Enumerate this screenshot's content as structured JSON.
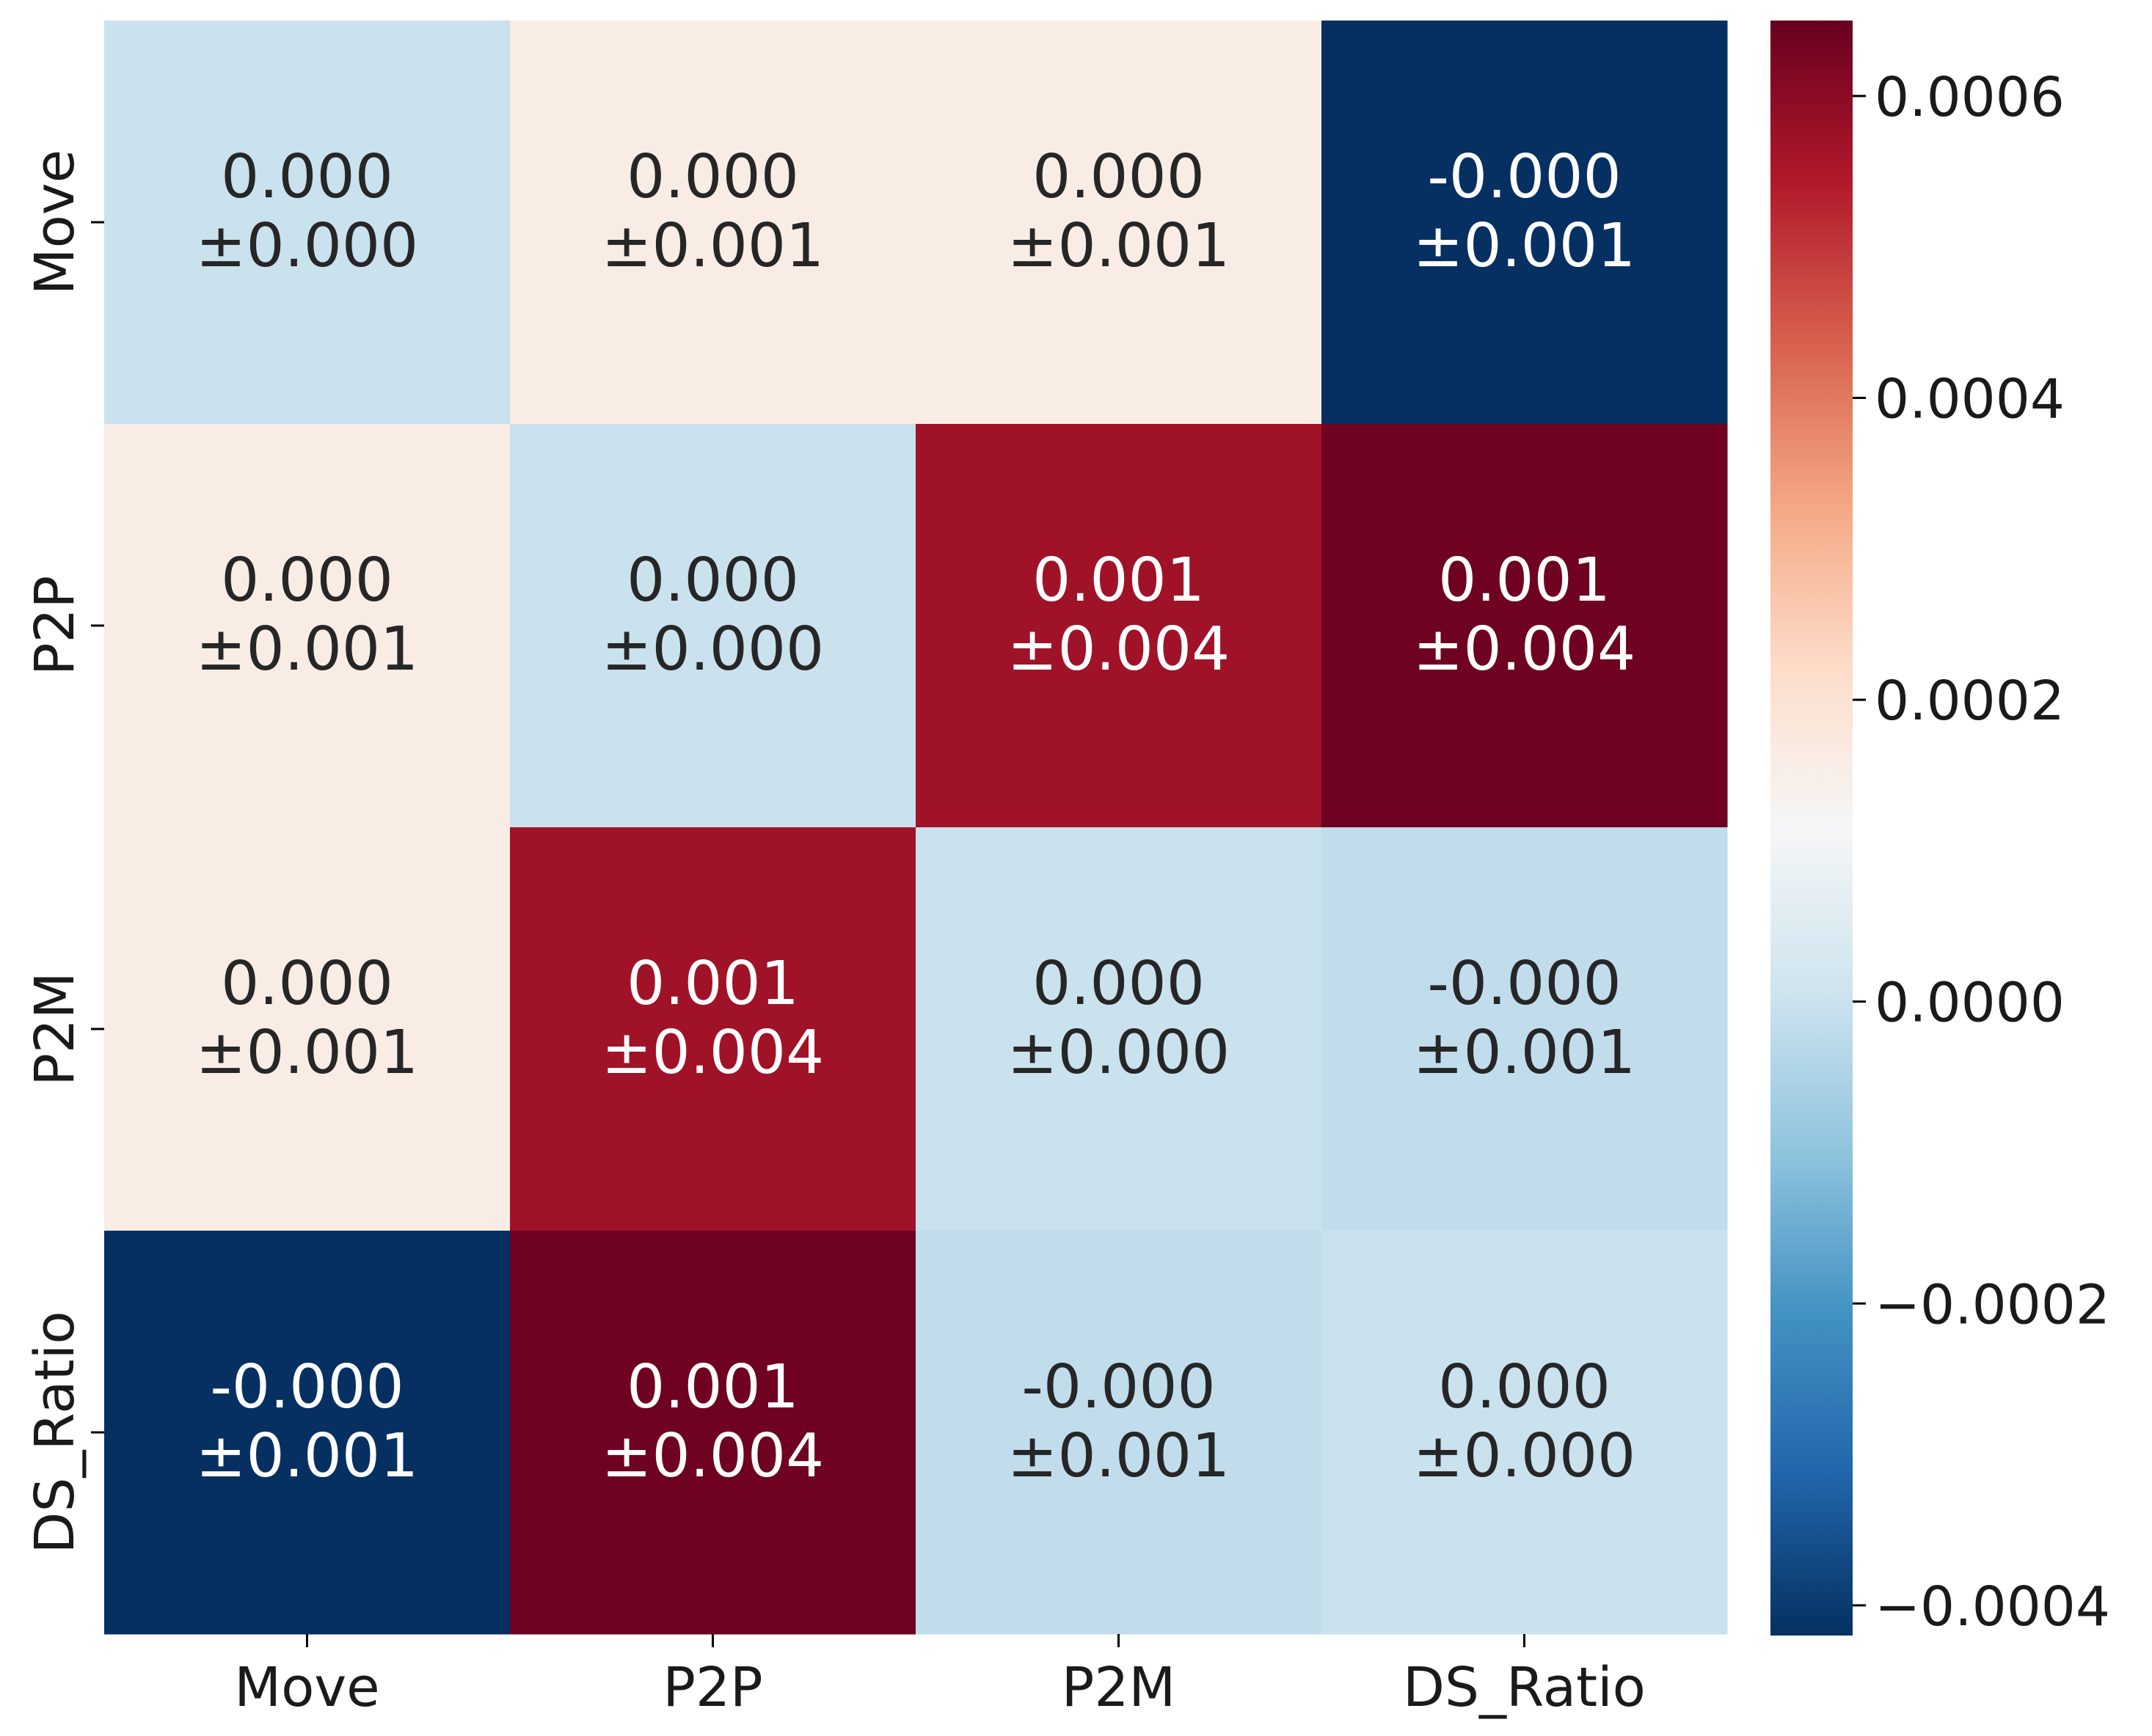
{
  "chart_data": {
    "type": "heatmap",
    "title": "",
    "xlabel": "",
    "ylabel": "",
    "x_categories": [
      "Move",
      "P2P",
      "P2M",
      "DS_Ratio"
    ],
    "y_categories": [
      "Move",
      "P2P",
      "P2M",
      "DS_Ratio"
    ],
    "values": [
      [
        0.0,
        0.00016,
        0.00016,
        -0.00042
      ],
      [
        0.00016,
        0.0,
        0.00057,
        0.00064
      ],
      [
        0.00016,
        0.00057,
        0.0,
        -1.5e-05
      ],
      [
        -0.00042,
        0.00064,
        -1.5e-05,
        0.0
      ]
    ],
    "annotations": [
      [
        [
          "0.000",
          "±0.000"
        ],
        [
          "0.000",
          "±0.001"
        ],
        [
          "0.000",
          "±0.001"
        ],
        [
          "-0.000",
          "±0.001"
        ]
      ],
      [
        [
          "0.000",
          "±0.001"
        ],
        [
          "0.000",
          "±0.000"
        ],
        [
          "0.001",
          "±0.004"
        ],
        [
          "0.001",
          "±0.004"
        ]
      ],
      [
        [
          "0.000",
          "±0.001"
        ],
        [
          "0.001",
          "±0.004"
        ],
        [
          "0.000",
          "±0.000"
        ],
        [
          "-0.000",
          "±0.001"
        ]
      ],
      [
        [
          "-0.000",
          "±0.001"
        ],
        [
          "0.001",
          "±0.004"
        ],
        [
          "-0.000",
          "±0.001"
        ],
        [
          "0.000",
          "±0.000"
        ]
      ]
    ],
    "colormap": "RdBu_r",
    "colorbar": {
      "range": [
        -0.00042,
        0.00065
      ],
      "center": 0.00012,
      "ticks": [
        -0.0004,
        -0.0002,
        0.0,
        0.0002,
        0.0004,
        0.0006
      ],
      "tick_labels": [
        "−0.0004",
        "−0.0002",
        "0.0000",
        "0.0002",
        "0.0004",
        "0.0006"
      ]
    },
    "grid": false,
    "legend": "colorbar-right"
  }
}
